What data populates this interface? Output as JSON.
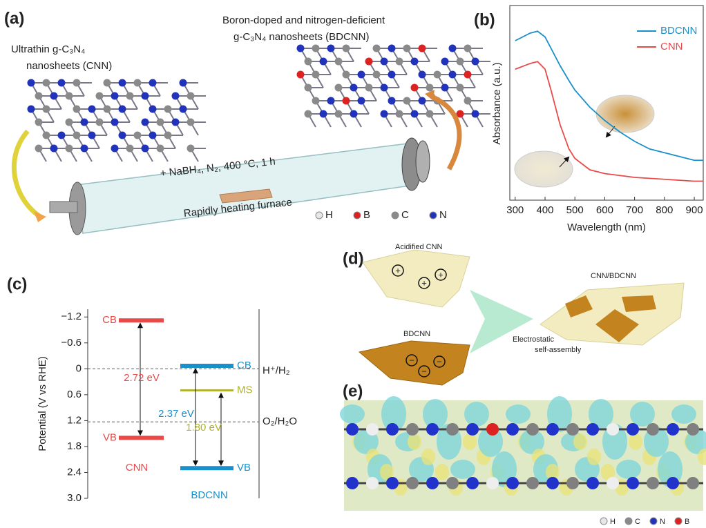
{
  "figure": {
    "panel_labels": [
      "(a)",
      "(b)",
      "(c)",
      "(d)",
      "(e)"
    ],
    "a": {
      "cnn_label": [
        "Ultrathin g-C₃N₄",
        "nanosheets (CNN)"
      ],
      "bdcnn_label": [
        "Boron-doped and nitrogen-deficient",
        "g-C₃N₄ nanosheets (BDCNN)"
      ],
      "condition": "+ NaBH₄, N₂, 400 °C, 1 h",
      "furnace": "Rapidly heating furnace",
      "atoms": [
        "H",
        "B",
        "C",
        "N"
      ]
    },
    "d": {
      "acidified": "Acidified CNN",
      "bdcnn": "BDCNN",
      "composite": "CNN/BDCNN",
      "process": [
        "Electrostatic",
        "self-assembly"
      ],
      "plus": "+",
      "minus": "−"
    },
    "e": {
      "atoms": [
        "H",
        "C",
        "N",
        "B"
      ]
    }
  },
  "chart_data": [
    {
      "type": "line",
      "xlabel": "Wavelength (nm)",
      "ylabel": "Absorbance (a.u.)",
      "x": [
        300,
        350,
        375,
        400,
        420,
        450,
        480,
        500,
        550,
        600,
        650,
        700,
        750,
        800,
        850,
        900,
        930
      ],
      "series": [
        {
          "name": "BDCNN",
          "color": "#1a8fc9",
          "values": [
            0.84,
            0.88,
            0.89,
            0.86,
            0.8,
            0.71,
            0.63,
            0.58,
            0.49,
            0.42,
            0.36,
            0.31,
            0.27,
            0.25,
            0.23,
            0.21,
            0.21
          ]
        },
        {
          "name": "CNN",
          "color": "#e84a4a",
          "values": [
            0.69,
            0.72,
            0.73,
            0.69,
            0.58,
            0.4,
            0.27,
            0.22,
            0.16,
            0.14,
            0.13,
            0.12,
            0.115,
            0.11,
            0.105,
            0.1,
            0.1
          ]
        }
      ],
      "xlim": [
        282,
        930
      ],
      "ylim": [
        0,
        1
      ],
      "xticks": [
        300,
        400,
        500,
        600,
        700,
        800,
        900
      ],
      "legend": "upper right"
    },
    {
      "type": "energy-levels",
      "ylabel": "Potential (V vs RHE)",
      "ylim": [
        -1.38,
        3.0
      ],
      "inverted": true,
      "yticks": [
        {
          "value": -1.2,
          "label": "−1.2"
        },
        {
          "value": -0.6,
          "label": "−0.6"
        },
        0,
        0.6,
        1.2,
        1.8,
        2.4,
        {
          "value": 3.0,
          "label": "3.0"
        }
      ],
      "series": [
        {
          "name": "CNN",
          "bands": [
            "CB",
            "VB"
          ],
          "values": [
            -1.12,
            1.6
          ],
          "colors": [
            "#e84a4a",
            "#e84a4a"
          ],
          "gap_labels": [
            "2.72 eV"
          ],
          "gap_colors": [
            "#e84a4a"
          ]
        },
        {
          "name": "BDCNN",
          "bands": [
            "CB",
            "MS",
            "VB"
          ],
          "values": [
            -0.07,
            0.5,
            2.3
          ],
          "colors": [
            "#1a8fc9",
            "#b0b02a",
            "#1a8fc9"
          ],
          "gap_labels": [
            "2.37 eV",
            "1.80 eV"
          ],
          "gap_colors": [
            "#1a8fc9",
            "#b0b02a"
          ]
        }
      ],
      "references": [
        {
          "label": "H⁺/H₂",
          "value": 0
        },
        {
          "label": "O₂/H₂O",
          "value": 1.23
        }
      ]
    }
  ]
}
